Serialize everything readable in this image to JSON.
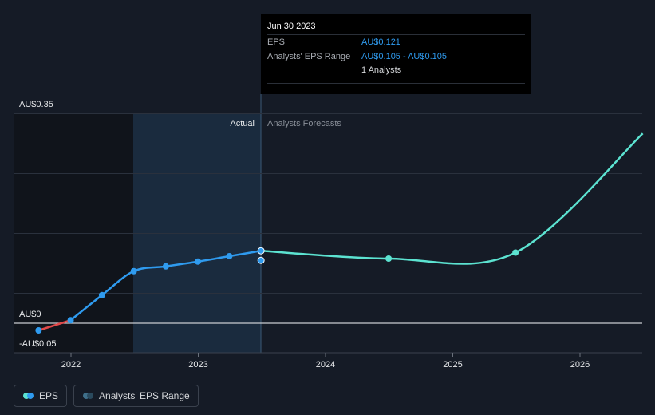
{
  "chart_data": {
    "type": "line",
    "y_tick_labels": [
      "AU$0.35",
      "AU$0",
      "-AU$0.05"
    ],
    "x_tick_labels": [
      "2022",
      "2023",
      "2024",
      "2025",
      "2026"
    ],
    "region_labels": {
      "actual": "Actual",
      "forecast": "Analysts Forecasts"
    },
    "ylim": [
      -0.05,
      0.35
    ],
    "series": [
      {
        "name": "EPS",
        "color": "#2f9bef",
        "negative_color": "#e0494a",
        "points": [
          {
            "x": "2021-09-30",
            "y": -0.012
          },
          {
            "x": "2021-12-31",
            "y": 0.005
          },
          {
            "x": "2022-03-31",
            "y": 0.047
          },
          {
            "x": "2022-06-30",
            "y": 0.087
          },
          {
            "x": "2022-09-30",
            "y": 0.095
          },
          {
            "x": "2022-12-31",
            "y": 0.103
          },
          {
            "x": "2023-03-31",
            "y": 0.112
          },
          {
            "x": "2023-06-30",
            "y": 0.121
          }
        ]
      },
      {
        "name": "Analysts Forecasts",
        "color": "#5ce3d1",
        "points": [
          {
            "x": "2023-06-30",
            "y": 0.121
          },
          {
            "x": "2024-06-30",
            "y": 0.108
          },
          {
            "x": "2025-06-30",
            "y": 0.118
          },
          {
            "x": "2026-06-30",
            "y": 0.317
          }
        ]
      },
      {
        "name": "Analysts' EPS Range",
        "points": [
          {
            "x": "2023-06-30",
            "low": 0.105,
            "high": 0.105
          }
        ]
      }
    ],
    "grid": true
  },
  "tooltip": {
    "date": "Jun 30 2023",
    "eps_label": "EPS",
    "eps_value": "AU$0.121",
    "range_label": "Analysts' EPS Range",
    "range_value": "AU$0.105 - AU$0.105",
    "analysts": "1 Analysts"
  },
  "legend": {
    "eps_label": "EPS",
    "range_label": "Analysts' EPS Range",
    "eps_colors": [
      "#5ce3d1",
      "#2f9bef"
    ],
    "range_colors": [
      "#3f6f8a",
      "#2a4a5e"
    ]
  }
}
